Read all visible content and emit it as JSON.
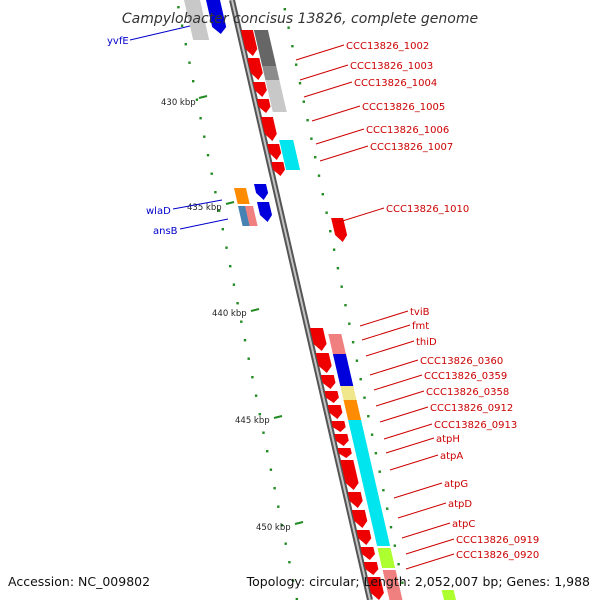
{
  "title": "Campylobacter concisus 13826, complete genome",
  "footer": {
    "accession": "Accession: NC_009802",
    "summary": "Topology: circular; Length: 2,052,007 bp; Genes: 1,988"
  },
  "colors": {
    "right_label": "#cc0000",
    "left_label": "#0000cc",
    "kbp_tick": "#228b22",
    "backbone_outer": "#555555",
    "backbone_inner": "#bbbbbb",
    "gene_red": "#ee0000",
    "gene_blue": "#0000dd",
    "cyan": "#00e5ee",
    "light_red": "#f08080",
    "dark_gray": "#666666",
    "light_gray": "#c8c8c8",
    "orange": "#ff8c00",
    "khaki": "#f0e68c",
    "steelblue": "#4682b4",
    "greenyellow": "#adff2f"
  },
  "kbp_ticks": [
    {
      "label": "430 kbp"
    },
    {
      "label": "435 kbp"
    },
    {
      "label": "440 kbp"
    },
    {
      "label": "445 kbp"
    },
    {
      "label": "450 kbp"
    }
  ],
  "right_labels": [
    {
      "text": "CCC13826_1002"
    },
    {
      "text": "CCC13826_1003"
    },
    {
      "text": "CCC13826_1004"
    },
    {
      "text": "CCC13826_1005"
    },
    {
      "text": "CCC13826_1006"
    },
    {
      "text": "CCC13826_1007"
    },
    {
      "text": "CCC13826_1010"
    },
    {
      "text": "tviB"
    },
    {
      "text": "fmt"
    },
    {
      "text": "thiD"
    },
    {
      "text": "CCC13826_0360"
    },
    {
      "text": "CCC13826_0359"
    },
    {
      "text": "CCC13826_0358"
    },
    {
      "text": "CCC13826_0912"
    },
    {
      "text": "CCC13826_0913"
    },
    {
      "text": "atpH"
    },
    {
      "text": "atpA"
    },
    {
      "text": "atpG"
    },
    {
      "text": "atpD"
    },
    {
      "text": "atpC"
    },
    {
      "text": "CCC13826_0919"
    },
    {
      "text": "CCC13826_0920"
    }
  ],
  "left_labels": [
    {
      "text": "yvfE"
    },
    {
      "text": "wlaD"
    },
    {
      "text": "ansB"
    }
  ]
}
